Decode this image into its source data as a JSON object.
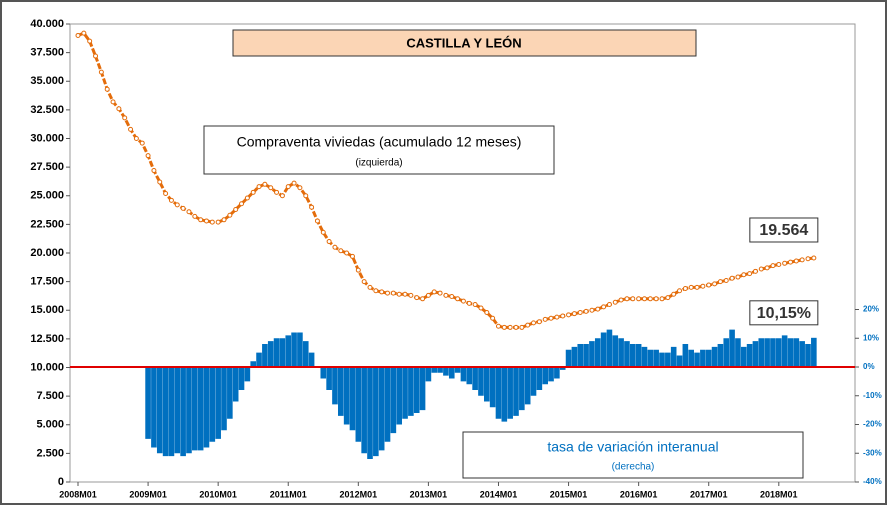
{
  "chart_data": {
    "type": "bar-line",
    "title": "CASTILLA Y LEÓN",
    "annotations": [
      {
        "text": "Compraventa viviedas (acumulado 12 meses)",
        "sub": "(izquierda)"
      },
      {
        "text": "tasa de variación interanual",
        "sub": "(derecha)"
      }
    ],
    "categories": [
      "2008M01",
      null,
      null,
      null,
      null,
      null,
      null,
      null,
      null,
      null,
      null,
      null,
      "2009M01",
      null,
      null,
      null,
      null,
      null,
      null,
      null,
      null,
      null,
      null,
      null,
      "2010M01",
      null,
      null,
      null,
      null,
      null,
      null,
      null,
      null,
      null,
      null,
      null,
      "2011M01",
      null,
      null,
      null,
      null,
      null,
      null,
      null,
      null,
      null,
      null,
      null,
      "2012M01",
      null,
      null,
      null,
      null,
      null,
      null,
      null,
      null,
      null,
      null,
      null,
      "2013M01",
      null,
      null,
      null,
      null,
      null,
      null,
      null,
      null,
      null,
      null,
      null,
      "2014M01",
      null,
      null,
      null,
      null,
      null,
      null,
      null,
      null,
      null,
      null,
      null,
      "2015M01",
      null,
      null,
      null,
      null,
      null,
      null,
      null,
      null,
      null,
      null,
      null,
      "2016M01",
      null,
      null,
      null,
      null,
      null,
      null,
      null,
      null,
      null,
      null,
      null,
      "2017M01",
      null,
      null,
      null,
      null,
      null,
      null,
      null,
      null,
      null,
      null,
      null,
      "2018M01",
      null,
      null,
      null,
      null,
      null,
      null
    ],
    "series": [
      {
        "name": "Compraventa viviedas (acumulado 12 meses)",
        "color": "#e46c0a",
        "values": [
          39000,
          39200,
          38500,
          37200,
          35800,
          34300,
          33200,
          32600,
          31800,
          30800,
          30000,
          29600,
          28500,
          27200,
          26200,
          25200,
          24600,
          24200,
          23900,
          23600,
          23200,
          22900,
          22800,
          22700,
          22700,
          22900,
          23300,
          23800,
          24300,
          24800,
          25300,
          25800,
          26000,
          25700,
          25300,
          25000,
          25800,
          26100,
          25700,
          25000,
          24000,
          22800,
          21800,
          21000,
          20500,
          20200,
          20000,
          19700,
          18500,
          17500,
          17000,
          16700,
          16600,
          16500,
          16500,
          16400,
          16400,
          16300,
          16100,
          16000,
          16300,
          16600,
          16500,
          16300,
          16200,
          16000,
          15800,
          15600,
          15500,
          15200,
          14800,
          14300,
          13600,
          13500,
          13500,
          13500,
          13500,
          13700,
          13900,
          14000,
          14200,
          14300,
          14400,
          14500,
          14600,
          14700,
          14800,
          14900,
          15000,
          15100,
          15300,
          15500,
          15700,
          15900,
          16000,
          16000,
          16000,
          16000,
          16000,
          16000,
          16000,
          16100,
          16400,
          16700,
          16900,
          17000,
          17000,
          17100,
          17200,
          17300,
          17500,
          17600,
          17800,
          17900,
          18100,
          18200,
          18400,
          18600,
          18700,
          18900,
          19000,
          19100,
          19200,
          19300,
          19400,
          19500,
          19564
        ],
        "value_labels": [
          null,
          null,
          null,
          null,
          null,
          null,
          null,
          null,
          null,
          null,
          null,
          null,
          null,
          null,
          null,
          null,
          null,
          null,
          null,
          null,
          null,
          null,
          null,
          null,
          null,
          null,
          null,
          null,
          null,
          null,
          null,
          null,
          null,
          null,
          null,
          null,
          null,
          null,
          null,
          null,
          null,
          null,
          null,
          null,
          null,
          null,
          null,
          null,
          null,
          null,
          null,
          null,
          null,
          null,
          null,
          null,
          null,
          null,
          null,
          null,
          null,
          null,
          null,
          null,
          null,
          null,
          null,
          null,
          null,
          null,
          null,
          null,
          null,
          null,
          null,
          null,
          null,
          null,
          null,
          null,
          null,
          null,
          null,
          null,
          null,
          null,
          null,
          null,
          null,
          null,
          null,
          null,
          null,
          null,
          null,
          null,
          null,
          null,
          null,
          null,
          null,
          null,
          null,
          null,
          null,
          null,
          null,
          null,
          null,
          null,
          null,
          null,
          null,
          null,
          null,
          null,
          null,
          null,
          null,
          null,
          null,
          null,
          null,
          null,
          null,
          null,
          "19.564"
        ]
      },
      {
        "name": "tasa de variación interanual",
        "color": "#0070c0",
        "axis": "y2",
        "values": [
          null,
          null,
          null,
          null,
          null,
          null,
          null,
          null,
          null,
          null,
          null,
          null,
          -25,
          -28,
          -30,
          -31,
          -31,
          -30,
          -31,
          -30,
          -29,
          -29,
          -28,
          -26,
          -25,
          -22,
          -18,
          -12,
          -8,
          -5,
          2,
          5,
          8,
          9,
          10,
          10,
          11,
          12,
          12,
          9,
          5,
          0,
          -4,
          -8,
          -13,
          -17,
          -20,
          -22,
          -26,
          -30,
          -32,
          -31,
          -29,
          -26,
          -23,
          -20,
          -18,
          -17,
          -16,
          -15,
          -5,
          -2,
          -2,
          -3,
          -4,
          -2,
          -5,
          -6,
          -8,
          -10,
          -12,
          -14,
          -18,
          -19,
          -18,
          -17,
          -15,
          -13,
          -10,
          -8,
          -6,
          -5,
          -4,
          -1,
          6,
          7,
          8,
          8,
          9,
          10,
          12,
          13,
          11,
          10,
          9,
          8,
          8,
          7,
          6,
          6,
          5,
          5,
          7,
          4,
          8,
          6,
          5,
          6,
          6,
          7,
          8,
          10,
          13,
          10,
          7,
          8,
          9,
          10,
          10,
          10,
          10,
          11,
          10,
          10,
          9,
          8,
          10.15
        ],
        "value_labels": [
          null,
          null,
          null,
          null,
          null,
          null,
          null,
          null,
          null,
          null,
          null,
          null,
          null,
          null,
          null,
          null,
          null,
          null,
          null,
          null,
          null,
          null,
          null,
          null,
          null,
          null,
          null,
          null,
          null,
          null,
          null,
          null,
          null,
          null,
          null,
          null,
          null,
          null,
          null,
          null,
          null,
          null,
          null,
          null,
          null,
          null,
          null,
          null,
          null,
          null,
          null,
          null,
          null,
          null,
          null,
          null,
          null,
          null,
          null,
          null,
          null,
          null,
          null,
          null,
          null,
          null,
          null,
          null,
          null,
          null,
          null,
          null,
          null,
          null,
          null,
          null,
          null,
          null,
          null,
          null,
          null,
          null,
          null,
          null,
          null,
          null,
          null,
          null,
          null,
          null,
          null,
          null,
          null,
          null,
          null,
          null,
          null,
          null,
          null,
          null,
          null,
          null,
          null,
          null,
          null,
          null,
          null,
          null,
          null,
          null,
          null,
          null,
          null,
          null,
          null,
          null,
          null,
          null,
          null,
          null,
          null,
          null,
          null,
          null,
          null,
          null,
          "10,15%"
        ]
      }
    ],
    "ylim": [
      0,
      40000
    ],
    "yticks": [
      {
        "value": 0,
        "label": "0"
      },
      {
        "value": 2500,
        "label": "2.500"
      },
      {
        "value": 5000,
        "label": "5.000"
      },
      {
        "value": 7500,
        "label": "7.500"
      },
      {
        "value": 10000,
        "label": "10.000"
      },
      {
        "value": 12500,
        "label": "12.500"
      },
      {
        "value": 15000,
        "label": "15.000"
      },
      {
        "value": 17500,
        "label": "17.500"
      },
      {
        "value": 20000,
        "label": "20.000"
      },
      {
        "value": 22500,
        "label": "22.500"
      },
      {
        "value": 25000,
        "label": "25.000"
      },
      {
        "value": 27500,
        "label": "27.500"
      },
      {
        "value": 30000,
        "label": "30.000"
      },
      {
        "value": 32500,
        "label": "32.500"
      },
      {
        "value": 35000,
        "label": "35.000"
      },
      {
        "value": 37500,
        "label": "37.500"
      },
      {
        "value": 40000,
        "label": "40.000"
      }
    ],
    "y2lim": [
      -40,
      119.3
    ],
    "y2ticks": [
      {
        "value": -40,
        "label": "-40%"
      },
      {
        "value": -30,
        "label": "-30%"
      },
      {
        "value": -20,
        "label": "-20%"
      },
      {
        "value": -10,
        "label": "-10%"
      },
      {
        "value": 0,
        "label": "0%"
      },
      {
        "value": 10,
        "label": "10%"
      },
      {
        "value": 20,
        "label": "20%"
      }
    ]
  }
}
